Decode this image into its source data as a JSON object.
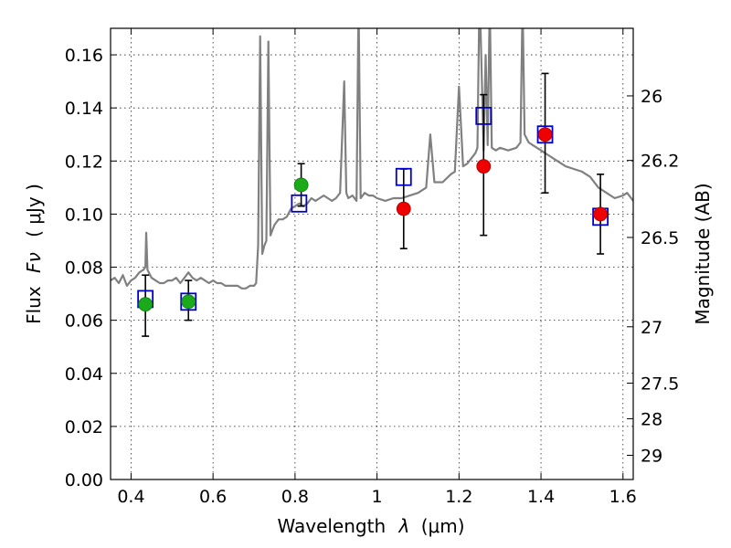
{
  "chart_data": {
    "type": "scatter",
    "title": "",
    "xlabel": "Wavelength",
    "xlabel_symbol": "λ",
    "xlabel_unit": "(μm)",
    "ylabel": "Flux",
    "ylabel_symbol": "Fν",
    "ylabel_unit": "( μJy )",
    "y2label": "Magnitude (AB)",
    "xlim": [
      0.35,
      1.625
    ],
    "ylim": [
      0.0,
      0.17
    ],
    "grid": true,
    "x_ticks": [
      "0.4",
      "0.6",
      "0.8",
      "1",
      "1.2",
      "1.4",
      "1.6"
    ],
    "x_tick_values": [
      0.4,
      0.6,
      0.8,
      1.0,
      1.2,
      1.4,
      1.6
    ],
    "y_ticks": [
      "0.00",
      "0.02",
      "0.04",
      "0.06",
      "0.08",
      "0.10",
      "0.12",
      "0.14",
      "0.16"
    ],
    "y_tick_values": [
      0.0,
      0.02,
      0.04,
      0.06,
      0.08,
      0.1,
      0.12,
      0.14,
      0.16
    ],
    "y2_ticks": [
      "26",
      "26.2",
      "26.5",
      "27",
      "27.5",
      "28",
      "29"
    ],
    "y2_tick_values": [
      26,
      26.2,
      26.5,
      27,
      27.5,
      28,
      29
    ],
    "colors": {
      "spectrum": "#808080",
      "model_box": "#0000cc",
      "optical": "#1aaa1a",
      "nir": "#ee0000",
      "errorbar": "#000000"
    },
    "series": [
      {
        "kind": "line",
        "color": "#808080",
        "x": [
          0.35,
          0.36,
          0.37,
          0.38,
          0.39,
          0.4,
          0.41,
          0.42,
          0.43,
          0.435,
          0.437,
          0.44,
          0.45,
          0.46,
          0.47,
          0.48,
          0.49,
          0.5,
          0.51,
          0.52,
          0.53,
          0.54,
          0.55,
          0.56,
          0.57,
          0.58,
          0.59,
          0.6,
          0.61,
          0.62,
          0.63,
          0.64,
          0.65,
          0.66,
          0.67,
          0.68,
          0.69,
          0.7,
          0.705,
          0.71,
          0.715,
          0.72,
          0.725,
          0.73,
          0.735,
          0.74,
          0.745,
          0.75,
          0.76,
          0.77,
          0.78,
          0.79,
          0.8,
          0.81,
          0.82,
          0.83,
          0.84,
          0.85,
          0.86,
          0.87,
          0.88,
          0.89,
          0.9,
          0.91,
          0.92,
          0.925,
          0.93,
          0.94,
          0.95,
          0.955,
          0.96,
          0.97,
          0.98,
          0.99,
          1.0,
          1.02,
          1.04,
          1.06,
          1.08,
          1.1,
          1.12,
          1.13,
          1.14,
          1.16,
          1.18,
          1.19,
          1.2,
          1.21,
          1.22,
          1.23,
          1.24,
          1.245,
          1.25,
          1.26,
          1.265,
          1.27,
          1.275,
          1.28,
          1.29,
          1.3,
          1.32,
          1.34,
          1.35,
          1.355,
          1.36,
          1.37,
          1.38,
          1.4,
          1.42,
          1.44,
          1.46,
          1.48,
          1.5,
          1.52,
          1.54,
          1.56,
          1.58,
          1.6,
          1.61,
          1.62,
          1.625
        ],
        "y": [
          0.075,
          0.076,
          0.074,
          0.077,
          0.073,
          0.075,
          0.076,
          0.078,
          0.079,
          0.08,
          0.093,
          0.079,
          0.076,
          0.075,
          0.074,
          0.074,
          0.075,
          0.075,
          0.076,
          0.074,
          0.076,
          0.078,
          0.076,
          0.075,
          0.076,
          0.075,
          0.074,
          0.075,
          0.074,
          0.074,
          0.073,
          0.073,
          0.073,
          0.073,
          0.072,
          0.072,
          0.073,
          0.073,
          0.074,
          0.088,
          0.167,
          0.085,
          0.088,
          0.09,
          0.165,
          0.092,
          0.094,
          0.096,
          0.098,
          0.098,
          0.099,
          0.102,
          0.103,
          0.104,
          0.103,
          0.104,
          0.106,
          0.105,
          0.106,
          0.107,
          0.106,
          0.105,
          0.106,
          0.108,
          0.15,
          0.108,
          0.106,
          0.107,
          0.105,
          0.18,
          0.106,
          0.108,
          0.107,
          0.107,
          0.106,
          0.105,
          0.106,
          0.106,
          0.107,
          0.108,
          0.11,
          0.13,
          0.112,
          0.112,
          0.115,
          0.116,
          0.148,
          0.118,
          0.119,
          0.121,
          0.123,
          0.125,
          0.185,
          0.124,
          0.16,
          0.126,
          0.18,
          0.125,
          0.124,
          0.125,
          0.124,
          0.125,
          0.127,
          0.18,
          0.13,
          0.127,
          0.126,
          0.124,
          0.122,
          0.12,
          0.118,
          0.117,
          0.116,
          0.114,
          0.11,
          0.108,
          0.106,
          0.107,
          0.108,
          0.106,
          0.105
        ]
      }
    ],
    "model_boxes": {
      "x": [
        0.435,
        0.54,
        0.81,
        1.065,
        1.26,
        1.41,
        1.545
      ],
      "y": [
        0.068,
        0.067,
        0.104,
        0.114,
        0.137,
        0.13,
        0.099
      ]
    },
    "optical_points": {
      "x": [
        0.435,
        0.54,
        0.815
      ],
      "y": [
        0.066,
        0.067,
        0.111
      ],
      "err_low": [
        0.054,
        0.06,
        0.103
      ],
      "err_high": [
        0.077,
        0.075,
        0.119
      ]
    },
    "nir_points": {
      "x": [
        1.065,
        1.26,
        1.41,
        1.545
      ],
      "y": [
        0.102,
        0.118,
        0.13,
        0.1
      ],
      "err_low": [
        0.087,
        0.092,
        0.108,
        0.085
      ],
      "err_high": [
        0.117,
        0.145,
        0.153,
        0.115
      ]
    }
  }
}
